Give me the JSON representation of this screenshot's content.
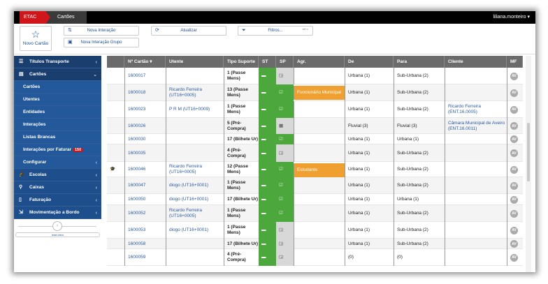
{
  "topbar": {
    "crumb_root": "ETAC",
    "crumb_current": "Cartões",
    "user": "liliana.monteiro ▾"
  },
  "toolbar": {
    "new_card": "Novo Cartão",
    "new_interaction": "Nova Interação",
    "new_group_interaction": "Nova Interação Grupo",
    "refresh": "Atualizar",
    "filters": "Filtros...",
    "filters_shortcut": "alt+c"
  },
  "sidebar": {
    "items": [
      {
        "label": "Títulos Transporte",
        "icon": "tickets-icon",
        "type": "top",
        "chevron": "‹"
      },
      {
        "label": "Cartões",
        "icon": "card-icon",
        "type": "top",
        "chevron": "⌄"
      },
      {
        "label": "Cartões",
        "type": "sub"
      },
      {
        "label": "Utentes",
        "type": "sub"
      },
      {
        "label": "Entidades",
        "type": "sub"
      },
      {
        "label": "Interações",
        "type": "sub"
      },
      {
        "label": "Listas Brancas",
        "type": "sub"
      },
      {
        "label": "Interações por Faturar",
        "type": "sub",
        "badge": "150"
      },
      {
        "label": "Configurar",
        "type": "sub",
        "chevron": "‹"
      },
      {
        "label": "Escolas",
        "icon": "graduation-cap-icon",
        "type": "main",
        "chevron": "‹"
      },
      {
        "label": "Caixas",
        "icon": "link-icon",
        "type": "main",
        "chevron": "‹"
      },
      {
        "label": "Faturação",
        "icon": "invoice-icon",
        "type": "main",
        "chevron": "‹"
      },
      {
        "label": "Movimentação a Bordo",
        "icon": "bus-icon",
        "type": "main",
        "chevron": "‹"
      }
    ],
    "reset": "reset menu"
  },
  "table": {
    "columns": [
      "",
      "Nº Cartão ▾",
      "Utente",
      "Tipo Suporte",
      "ST",
      "SP",
      "Agr.",
      "De",
      "Para",
      "Cliente",
      "MF"
    ],
    "rows": [
      {
        "icon": "",
        "card": "1600017",
        "utente": "",
        "tipo": "1 (Passe Mens)",
        "sp": "grey",
        "agr": "",
        "de": "Urbana (1)",
        "para": "Sub-Urbana (2)",
        "cliente": ""
      },
      {
        "icon": "",
        "card": "1600018",
        "utente": "Ricardo Ferreira (UT16+0005)",
        "tipo": "13 (Passe Mens)",
        "sp": "green",
        "agr": "Funcionário Municipal",
        "de": "Urbana (1)",
        "para": "Sub-Urbana (2)",
        "cliente": ""
      },
      {
        "icon": "",
        "card": "1600023",
        "utente": "P R M (UT16+0009)",
        "tipo": "1 (Passe Mens)",
        "sp": "green",
        "agr": "",
        "de": "Urbana (1)",
        "para": "Sub-Urbana (2)",
        "cliente": "Ricardo Ferreira (ENT.16.0005)"
      },
      {
        "icon": "",
        "card": "1600026",
        "utente": "",
        "tipo": "5 (Pré-Compra)",
        "sp": "grey2",
        "agr": "",
        "de": "Fluvial (3)",
        "para": "Fluvial (3)",
        "cliente": "Câmara Municipal de Aveiro (ENT.16.0011)"
      },
      {
        "icon": "",
        "card": "1600030",
        "utente": "",
        "tipo": "17 (Bilhete Ur)",
        "sp": "green",
        "agr": "",
        "de": "Urbana (1)",
        "para": "Urbana (1)",
        "cliente": ""
      },
      {
        "icon": "",
        "card": "1600035",
        "utente": "",
        "tipo": "4 (Pré-Compra)",
        "sp": "grey",
        "agr": "",
        "de": "Urbana (1)",
        "para": "Sub-Urbana (2)",
        "cliente": ""
      },
      {
        "icon": "🎓",
        "card": "1600046",
        "utente": "Ricardo Ferreira (UT16+0005)",
        "tipo": "12 (Passe Mens)",
        "sp": "green",
        "agr": "Estudante",
        "de": "Urbana (1)",
        "para": "Sub-Urbana (2)",
        "cliente": ""
      },
      {
        "icon": "",
        "card": "1600047",
        "utente": "diogo (UT16+0001)",
        "tipo": "1 (Passe Mens)",
        "sp": "green",
        "agr": "",
        "de": "Urbana (1)",
        "para": "Sub-Urbana (2)",
        "cliente": ""
      },
      {
        "icon": "",
        "card": "1600050",
        "utente": "diogo (UT16+0001)",
        "tipo": "17 (Bilhete Ur)",
        "sp": "green",
        "agr": "",
        "de": "Urbana (1)",
        "para": "Urbana (1)",
        "cliente": ""
      },
      {
        "icon": "",
        "card": "1600052",
        "utente": "Ricardo Ferreira (UT16+0005)",
        "tipo": "1 (Passe Mens)",
        "sp": "green",
        "agr": "",
        "de": "Urbana (1)",
        "para": "Sub-Urbana (2)",
        "cliente": ""
      },
      {
        "icon": "",
        "card": "1600053",
        "utente": "diogo (UT16+0001)",
        "tipo": "1 (Passe Mens)",
        "sp": "grey",
        "agr": "",
        "de": "Urbana (1)",
        "para": "Sub-Urbana (2)",
        "cliente": ""
      },
      {
        "icon": "",
        "card": "1600058",
        "utente": "",
        "tipo": "17 (Bilhete Ur)",
        "sp": "grey",
        "agr": "",
        "de": "Urbana (1)",
        "para": "Sub-Urbana (2)",
        "cliente": ""
      },
      {
        "icon": "",
        "card": "1600059",
        "utente": "",
        "tipo": "4 (Pré-Compra)",
        "sp": "grey",
        "agr": "",
        "de": "(0)",
        "para": "(0)",
        "cliente": ""
      }
    ],
    "mf_label": "AV"
  },
  "colors": {
    "topbar": "#000000",
    "brand_red": "#d0151b",
    "sidebar": "#1e4f8c",
    "st_green": "#4ca83d",
    "agr_orange": "#f0a030",
    "header": "#6b6b6b",
    "link": "#2c5aa0"
  }
}
